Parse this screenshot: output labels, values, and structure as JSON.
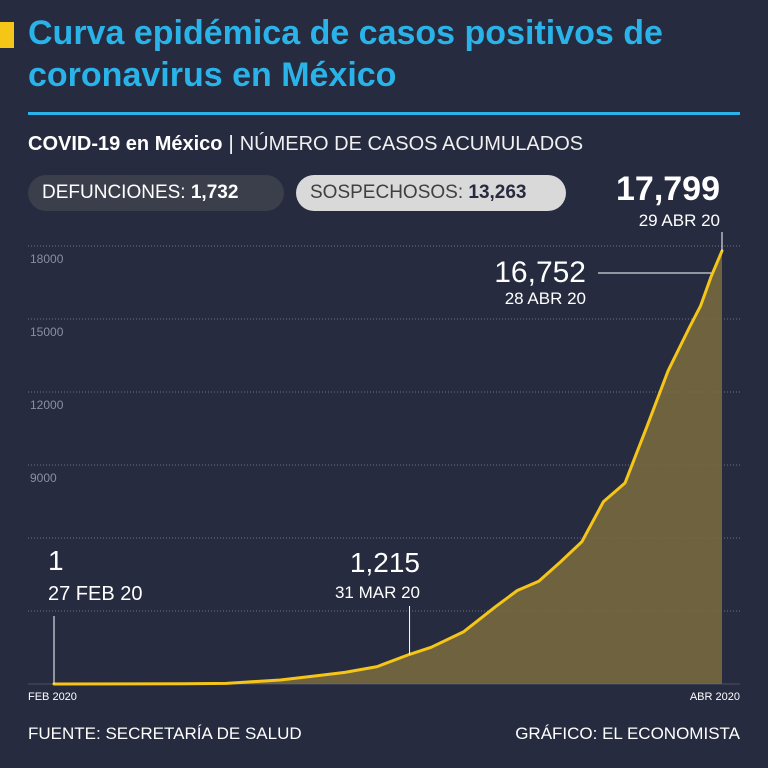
{
  "header": {
    "title": "Curva epidémica de casos positivos de coronavirus en México",
    "subtitle_bold": "COVID-19 en México",
    "subtitle_separator": "|",
    "subtitle_light": "NÚMERO DE CASOS ACUMULADOS"
  },
  "stats": {
    "deaths_label": "DEFUNCIONES:",
    "deaths_value": "1,732",
    "suspected_label": "SOSPECHOSOS:",
    "suspected_value": "13,263"
  },
  "colors": {
    "background": "#262b3f",
    "title": "#29b3e8",
    "accent": "#f5c518",
    "line": "#f5c518",
    "area": "#7d6d3f",
    "grid": "#6e7385"
  },
  "chart_data": {
    "type": "area",
    "title": "",
    "xlabel": "",
    "ylabel": "",
    "ylim": [
      0,
      18000
    ],
    "y_ticks": [
      3000,
      6000,
      9000,
      12000,
      15000,
      18000
    ],
    "y_tick_labels": [
      "9000",
      "12000",
      "15000",
      "18000"
    ],
    "x_tick_labels": [
      "FEB 2020",
      "ABR 2020"
    ],
    "grid": true,
    "x": [
      "2020-02-27",
      "2020-03-05",
      "2020-03-10",
      "2020-03-14",
      "2020-03-16",
      "2020-03-19",
      "2020-03-22",
      "2020-03-25",
      "2020-03-28",
      "2020-03-31",
      "2020-04-02",
      "2020-04-05",
      "2020-04-08",
      "2020-04-10",
      "2020-04-12",
      "2020-04-14",
      "2020-04-16",
      "2020-04-18",
      "2020-04-20",
      "2020-04-22",
      "2020-04-24",
      "2020-04-26",
      "2020-04-27",
      "2020-04-28",
      "2020-04-29"
    ],
    "series": [
      {
        "values": [
          1,
          5,
          7,
          26,
          82,
          164,
          316,
          475,
          717,
          1215,
          1510,
          2143,
          3181,
          3844,
          4219,
          5014,
          5847,
          7497,
          8261,
          10544,
          12872,
          14677,
          15529,
          16752,
          17799
        ]
      }
    ],
    "annotations": [
      {
        "x": "2020-02-27",
        "value": "1",
        "label": "27 FEB 20"
      },
      {
        "x": "2020-03-31",
        "value": "1,215",
        "label": "31 MAR 20"
      },
      {
        "x": "2020-04-28",
        "value": "16,752",
        "label": "28 ABR 20"
      },
      {
        "x": "2020-04-29",
        "value": "17,799",
        "label": "29 ABR 20"
      }
    ]
  },
  "footer": {
    "source": "FUENTE: SECRETARÍA DE SALUD",
    "credit": "GRÁFICO: EL ECONOMISTA"
  }
}
